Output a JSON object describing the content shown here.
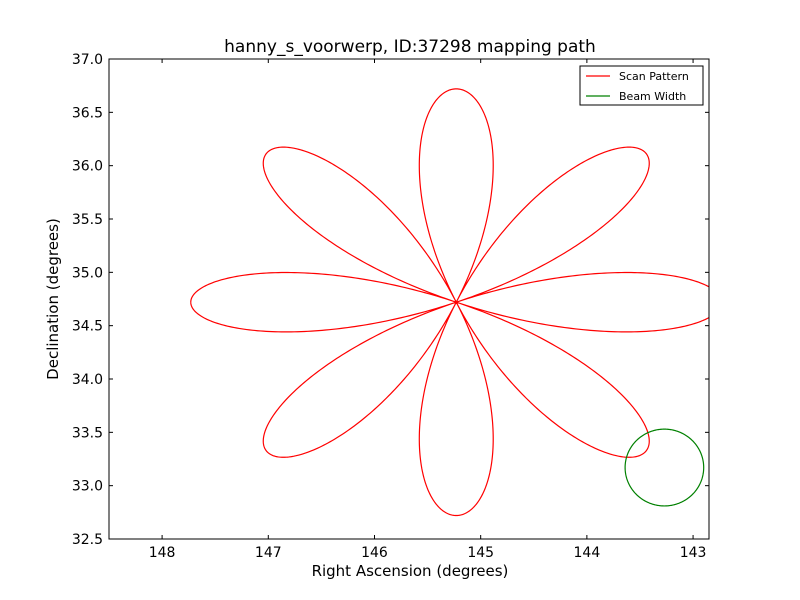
{
  "chart_data": {
    "type": "line",
    "title": "hanny_s_voorwerp, ID:37298 mapping path",
    "xlabel": "Right Ascension (degrees)",
    "ylabel": "Declination (degrees)",
    "xlim": [
      148.5,
      142.85
    ],
    "ylim": [
      32.5,
      37.0
    ],
    "x_inverted": true,
    "xticks": [
      148,
      147,
      146,
      145,
      144,
      143
    ],
    "xtick_labels": [
      "148",
      "147",
      "146",
      "145",
      "144",
      "143"
    ],
    "yticks": [
      32.5,
      33.0,
      33.5,
      34.0,
      34.5,
      35.0,
      35.5,
      36.0,
      36.5,
      37.0
    ],
    "ytick_labels": [
      "32.5",
      "33.0",
      "33.5",
      "34.0",
      "34.5",
      "35.0",
      "35.5",
      "36.0",
      "36.5",
      "37.0"
    ],
    "grid": false,
    "legend_position": "top-right",
    "series": [
      {
        "name": "Scan Pattern",
        "kind": "rose",
        "center": [
          145.23,
          34.72
        ],
        "petals": 8,
        "radius_ra": 2.5,
        "radius_dec": 2.0,
        "color": "#ff0000"
      },
      {
        "name": "Beam Width",
        "kind": "circle",
        "center": [
          143.27,
          33.17
        ],
        "radius_ra": 0.37,
        "radius_dec": 0.36,
        "color": "#008000"
      }
    ]
  }
}
